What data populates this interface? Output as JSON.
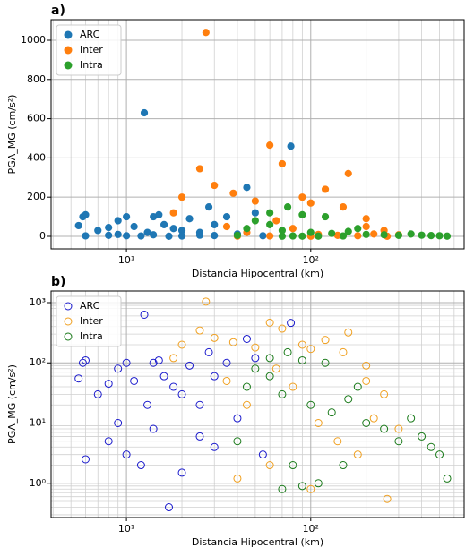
{
  "chart_data": [
    {
      "type": "scatter",
      "title": "a)",
      "x_label": "Distancia Hipocentral (km)",
      "y_label": "PGA_MG (cm/s²)",
      "log_x": true,
      "log_y": false,
      "marker": "filled",
      "grid": true,
      "minor_grid": true,
      "legend": "upper left",
      "xlim": [
        3.9,
        680
      ],
      "ylim": [
        -64,
        1105
      ],
      "xticks": [
        {
          "value": 10,
          "label": "10¹"
        },
        {
          "value": 100,
          "label": "10²"
        }
      ],
      "yticks": [
        0,
        200,
        400,
        600,
        800,
        1000
      ],
      "series": [
        {
          "name": "ARC",
          "color": "#1f77b4",
          "x": [
            5.5,
            5.8,
            6,
            7,
            8,
            9,
            10,
            11,
            12.5,
            13,
            14,
            15,
            16,
            18,
            20,
            22,
            25,
            28,
            30,
            35,
            45,
            50,
            78,
            8,
            10,
            12,
            14,
            17,
            20,
            6,
            9,
            25,
            30,
            40,
            55
          ],
          "values": [
            55,
            100,
            110,
            30,
            45,
            80,
            100,
            50,
            630,
            20,
            100,
            110,
            60,
            40,
            30,
            90,
            20,
            150,
            60,
            100,
            250,
            120,
            460,
            5,
            3,
            2,
            8,
            0.4,
            1.5,
            2.5,
            10,
            6,
            4,
            12,
            3
          ]
        },
        {
          "name": "Inter",
          "color": "#ff7f0e",
          "x": [
            27,
            60,
            70,
            160,
            25,
            20,
            30,
            38,
            50,
            90,
            100,
            120,
            150,
            200,
            250,
            18,
            35,
            45,
            65,
            80,
            110,
            140,
            180,
            220,
            300,
            40,
            100,
            260,
            60,
            200
          ],
          "values": [
            1040,
            465,
            370,
            320,
            345,
            200,
            260,
            220,
            180,
            200,
            170,
            240,
            150,
            90,
            30,
            120,
            50,
            20,
            80,
            40,
            10,
            5,
            3,
            12,
            8,
            1.2,
            0.8,
            0.55,
            2,
            50
          ]
        },
        {
          "name": "Intra",
          "color": "#2ca02c",
          "x": [
            75,
            60,
            90,
            120,
            45,
            50,
            70,
            100,
            130,
            160,
            200,
            250,
            300,
            350,
            400,
            450,
            500,
            550,
            40,
            80,
            110,
            60,
            180,
            150,
            90,
            70
          ],
          "values": [
            150,
            120,
            110,
            100,
            40,
            80,
            30,
            20,
            15,
            25,
            10,
            8,
            5,
            12,
            6,
            4,
            3,
            1.2,
            5,
            2,
            1,
            60,
            40,
            2,
            0.9,
            0.8
          ]
        }
      ]
    },
    {
      "type": "scatter",
      "title": "b)",
      "x_label": "Distancia Hipocentral (km)",
      "y_label": "PGA_MG (cm/s²)",
      "log_x": true,
      "log_y": true,
      "marker": "hollow",
      "grid": true,
      "minor_grid": true,
      "legend": "upper left",
      "xlim": [
        3.9,
        680
      ],
      "ylim": [
        0.27,
        1560
      ],
      "xticks": [
        {
          "value": 10,
          "label": "10¹"
        },
        {
          "value": 100,
          "label": "10²"
        }
      ],
      "yticks": [
        {
          "value": 1,
          "label": "10⁰"
        },
        {
          "value": 10,
          "label": "10¹"
        },
        {
          "value": 100,
          "label": "10²"
        },
        {
          "value": 1000,
          "label": "10³"
        }
      ],
      "series": [
        {
          "name": "ARC",
          "color": "#1a1acc",
          "x": [
            5.5,
            5.8,
            6,
            7,
            8,
            9,
            10,
            11,
            12.5,
            13,
            14,
            15,
            16,
            18,
            20,
            22,
            25,
            28,
            30,
            35,
            45,
            50,
            78,
            8,
            10,
            12,
            14,
            17,
            20,
            6,
            9,
            25,
            30,
            40,
            55
          ],
          "values": [
            55,
            100,
            110,
            30,
            45,
            80,
            100,
            50,
            630,
            20,
            100,
            110,
            60,
            40,
            30,
            90,
            20,
            150,
            60,
            100,
            250,
            120,
            460,
            5,
            3,
            2,
            8,
            0.4,
            1.5,
            2.5,
            10,
            6,
            4,
            12,
            3
          ]
        },
        {
          "name": "Inter",
          "color": "#f0a020",
          "x": [
            27,
            60,
            70,
            160,
            25,
            20,
            30,
            38,
            50,
            90,
            100,
            120,
            150,
            200,
            250,
            18,
            35,
            45,
            65,
            80,
            110,
            140,
            180,
            220,
            300,
            40,
            100,
            260,
            60,
            200
          ],
          "values": [
            1040,
            465,
            370,
            320,
            345,
            200,
            260,
            220,
            180,
            200,
            170,
            240,
            150,
            90,
            30,
            120,
            50,
            20,
            80,
            40,
            10,
            5,
            3,
            12,
            8,
            1.2,
            0.8,
            0.55,
            2,
            50
          ]
        },
        {
          "name": "Intra",
          "color": "#1a7a1a",
          "x": [
            75,
            60,
            90,
            120,
            45,
            50,
            70,
            100,
            130,
            160,
            200,
            250,
            300,
            350,
            400,
            450,
            500,
            550,
            40,
            80,
            110,
            60,
            180,
            150,
            90,
            70
          ],
          "values": [
            150,
            120,
            110,
            100,
            40,
            80,
            30,
            20,
            15,
            25,
            10,
            8,
            5,
            12,
            6,
            4,
            3,
            1.2,
            5,
            2,
            1,
            60,
            40,
            2,
            0.9,
            0.8
          ]
        }
      ]
    }
  ]
}
